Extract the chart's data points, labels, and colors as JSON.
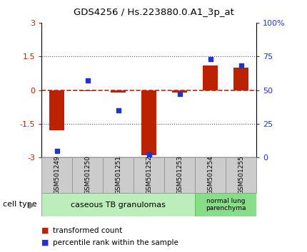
{
  "title": "GDS4256 / Hs.223880.0.A1_3p_at",
  "samples": [
    "GSM501249",
    "GSM501250",
    "GSM501251",
    "GSM501252",
    "GSM501253",
    "GSM501254",
    "GSM501255"
  ],
  "bar_values": [
    -1.8,
    -0.05,
    -0.12,
    -2.9,
    -0.1,
    1.1,
    1.0
  ],
  "dot_values": [
    5,
    57,
    35,
    2,
    47,
    73,
    68
  ],
  "ylim_left": [
    -3,
    3
  ],
  "ylim_right": [
    0,
    100
  ],
  "yticks_left": [
    -3,
    -1.5,
    0,
    1.5,
    3
  ],
  "ytick_labels_left": [
    "-3",
    "-1.5",
    "0",
    "1.5",
    "3"
  ],
  "yticks_right": [
    0,
    25,
    50,
    75,
    100
  ],
  "ytick_labels_right": [
    "0",
    "25",
    "50",
    "75",
    "100%"
  ],
  "bar_color": "#bb2200",
  "dot_color": "#2233cc",
  "zero_line_color": "#cc2200",
  "dotted_line_color": "#555555",
  "group1_label": "caseous TB granulomas",
  "group2_label": "normal lung\nparenchyma",
  "group1_indices": [
    0,
    1,
    2,
    3,
    4
  ],
  "group2_indices": [
    5,
    6
  ],
  "group1_color": "#bbeebb",
  "group2_color": "#88dd88",
  "cell_type_label": "cell type",
  "legend1_label": "transformed count",
  "legend2_label": "percentile rank within the sample",
  "bg_color": "#ffffff",
  "tick_area_color": "#cccccc",
  "box_edge_color": "#999999"
}
